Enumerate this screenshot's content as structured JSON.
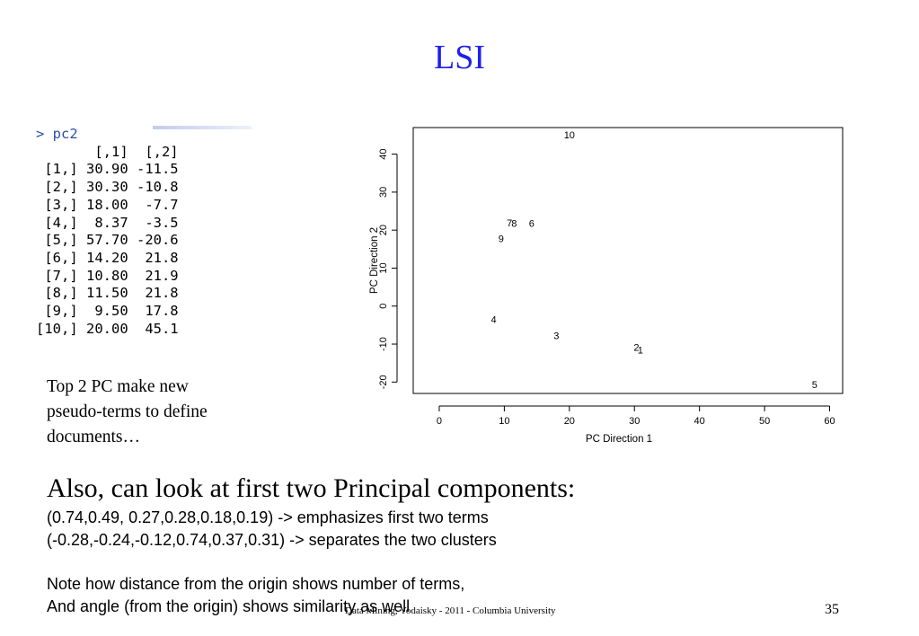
{
  "slide": {
    "title": "LSI",
    "note_lines": [
      "Top 2 PC make new",
      "pseudo-terms to define",
      "documents…"
    ],
    "heading": "Also, can look at first two Principal components:",
    "line1": "(0.74,0.49, 0.27,0.28,0.18,0.19)   -> emphasizes first two terms",
    "line2": "(-0.28,-0.24,-0.12,0.74,0.37,0.31) -> separates the two clusters",
    "line3": "Note how distance from the origin shows number of terms,",
    "line4": "And angle (from the origin) shows similarity as well",
    "footer": "Data Mining, Yodaisky - 2011 -  Columbia University",
    "page_number": "35"
  },
  "console": {
    "prompt": "> pc2",
    "header": "       [,1]  [,2]",
    "rows": [
      {
        "idx": " [1,]",
        "c1": "30.90",
        "c2": "-11.5"
      },
      {
        "idx": " [2,]",
        "c1": "30.30",
        "c2": "-10.8"
      },
      {
        "idx": " [3,]",
        "c1": "18.00",
        "c2": " -7.7"
      },
      {
        "idx": " [4,]",
        "c1": " 8.37",
        "c2": " -3.5"
      },
      {
        "idx": " [5,]",
        "c1": "57.70",
        "c2": "-20.6"
      },
      {
        "idx": " [6,]",
        "c1": "14.20",
        "c2": " 21.8"
      },
      {
        "idx": " [7,]",
        "c1": "10.80",
        "c2": " 21.9"
      },
      {
        "idx": " [8,]",
        "c1": "11.50",
        "c2": " 21.8"
      },
      {
        "idx": " [9,]",
        "c1": " 9.50",
        "c2": " 17.8"
      },
      {
        "idx": "[10,]",
        "c1": "20.00",
        "c2": " 45.1"
      }
    ]
  },
  "chart_data": {
    "type": "scatter",
    "xlabel": "PC Direction 1",
    "ylabel": "PC Direction 2",
    "xlim": [
      -4,
      62
    ],
    "ylim": [
      -23,
      47
    ],
    "xticks": [
      0,
      10,
      20,
      30,
      40,
      50,
      60
    ],
    "yticks": [
      -20,
      -10,
      0,
      10,
      20,
      30,
      40
    ],
    "grid": false,
    "points": [
      {
        "label": "1",
        "x": 30.9,
        "y": -11.5
      },
      {
        "label": "2",
        "x": 30.3,
        "y": -10.8
      },
      {
        "label": "3",
        "x": 18.0,
        "y": -7.7
      },
      {
        "label": "4",
        "x": 8.37,
        "y": -3.5
      },
      {
        "label": "5",
        "x": 57.7,
        "y": -20.6
      },
      {
        "label": "6",
        "x": 14.2,
        "y": 21.8
      },
      {
        "label": "7",
        "x": 10.8,
        "y": 21.9
      },
      {
        "label": "8",
        "x": 11.5,
        "y": 21.8
      },
      {
        "label": "9",
        "x": 9.5,
        "y": 17.8
      },
      {
        "label": "10",
        "x": 20.0,
        "y": 45.1
      }
    ]
  }
}
